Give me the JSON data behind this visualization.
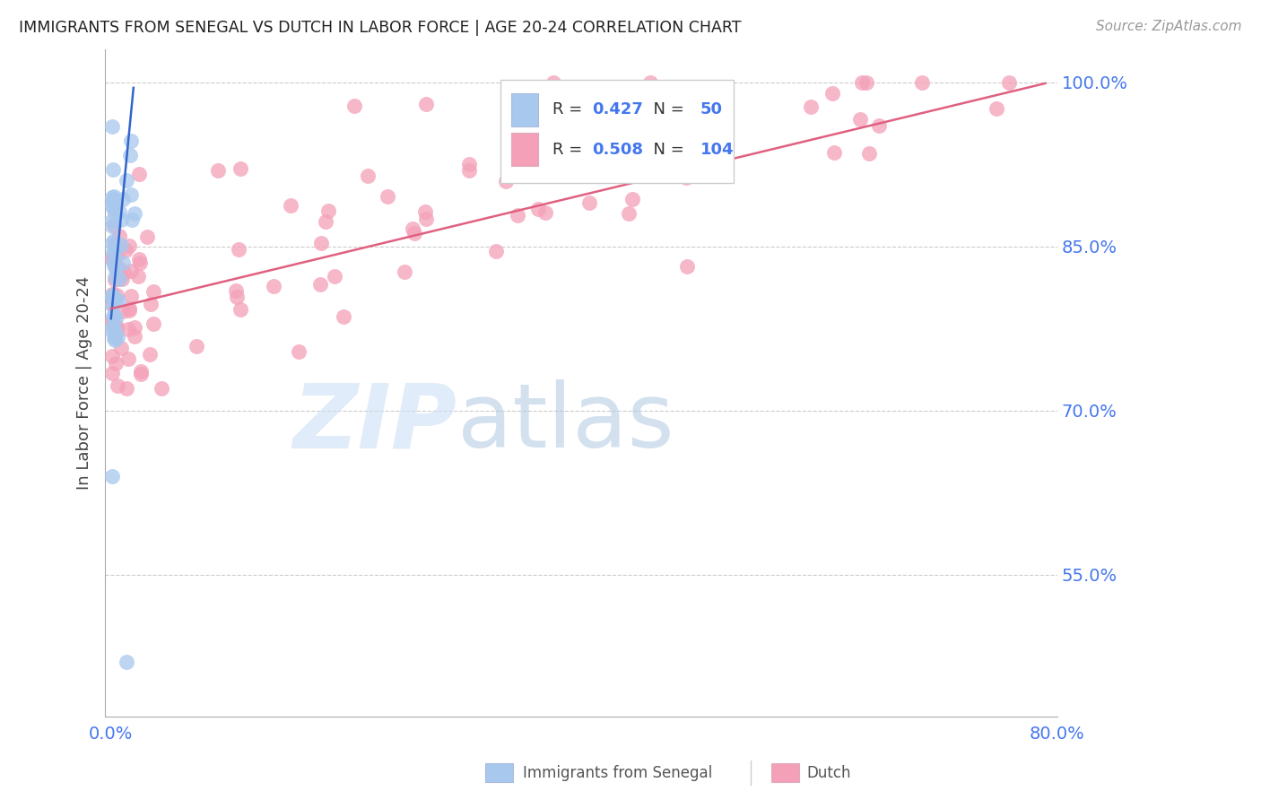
{
  "title": "IMMIGRANTS FROM SENEGAL VS DUTCH IN LABOR FORCE | AGE 20-24 CORRELATION CHART",
  "source": "Source: ZipAtlas.com",
  "ylabel": "In Labor Force | Age 20-24",
  "xlim": [
    -0.005,
    0.8
  ],
  "ylim": [
    0.42,
    1.03
  ],
  "yticks": [
    0.55,
    0.7,
    0.85,
    1.0
  ],
  "ytick_labels": [
    "55.0%",
    "70.0%",
    "85.0%",
    "100.0%"
  ],
  "senegal_R": 0.427,
  "senegal_N": 50,
  "dutch_R": 0.508,
  "dutch_N": 104,
  "senegal_color": "#a8c8ee",
  "dutch_color": "#f4a0b8",
  "senegal_line_color": "#3366cc",
  "dutch_line_color": "#e06080",
  "background_color": "#ffffff",
  "grid_color": "#cccccc",
  "tick_label_color": "#4477ee",
  "title_color": "#222222",
  "axis_color": "#aaaaaa"
}
